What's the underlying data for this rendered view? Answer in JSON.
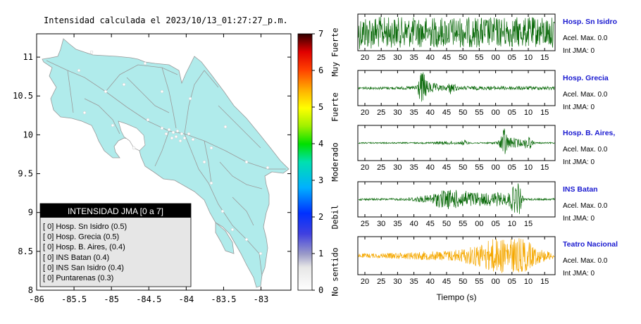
{
  "map": {
    "title": "Intensidad calculada el 2023/10/13_01:27:27_p.m.",
    "x_ticks": [
      "-86",
      "-85.5",
      "-85",
      "-84.5",
      "-84",
      "-83.5",
      "-83"
    ],
    "y_ticks": [
      "8",
      "8.5",
      "9",
      "9.5",
      "10",
      "10.5",
      "11"
    ],
    "xlim": [
      -86,
      -82.6
    ],
    "ylim": [
      8,
      11.3
    ],
    "land_color": "#b0ebeb"
  },
  "legend": {
    "header": "INTENSIDAD JMA [0 a 7]",
    "items": [
      "[ 0]  Hosp. Sn Isidro (0.5)",
      "[ 0]  Hosp. Grecia (0.5)",
      "[ 0]  Hosp. B. Aires, (0.4)",
      "[ 0]  INS Batan (0.4)",
      "[ 0]  INS San Isidro (0.4)",
      "[ 0]  Puntarenas (0.3)"
    ]
  },
  "colorbar": {
    "ticks": [
      "0",
      "1",
      "2",
      "3",
      "4",
      "5",
      "6",
      "7"
    ],
    "range": [
      0,
      7
    ],
    "labels": [
      {
        "text": "No sentido",
        "center": 0.5
      },
      {
        "text": "Debil",
        "center": 2.0
      },
      {
        "text": "Moderado",
        "center": 3.5
      },
      {
        "text": "Fuerte",
        "center": 5.0
      },
      {
        "text": "Muy Fuerte",
        "center": 6.5
      }
    ]
  },
  "chart_data": {
    "type": "line",
    "xlabel": "Tiempo (s)",
    "stations": [
      {
        "name": "Hosp. Sn Isidro",
        "acel": "Acel. Max. 0.0",
        "int": "Int JMA: 0",
        "color": "#0a6a0a",
        "ticks": [
          "20",
          "25",
          "30",
          "35",
          "40",
          "45",
          "50",
          "55",
          "00",
          "05",
          "10",
          "15"
        ],
        "tick_start": 20,
        "noise": 0.9,
        "bursts": [
          [
            17,
            0.4,
            3.5
          ]
        ]
      },
      {
        "name": "Hosp. Grecia",
        "acel": "Acel. Max. 0.0",
        "int": "Int JMA: 0",
        "color": "#0a6a0a",
        "ticks": [
          "20",
          "25",
          "30",
          "35",
          "40",
          "45",
          "50",
          "55",
          "00",
          "05",
          "10",
          "15"
        ],
        "tick_start": 20,
        "noise": 0.06,
        "bursts": [
          [
            37.5,
            0.9,
            0.8
          ],
          [
            39.5,
            0.25,
            2.5
          ],
          [
            46.5,
            0.3,
            0.8
          ],
          [
            60,
            0.06,
            25
          ]
        ]
      },
      {
        "name": "Hosp. B. Aires,",
        "acel": "Acel. Max. 0.0",
        "int": "Int JMA: 0",
        "color": "#0a6a0a",
        "ticks": [
          "20",
          "25",
          "30",
          "35",
          "40",
          "45",
          "50",
          "55",
          "00",
          "05",
          "10",
          "15"
        ],
        "tick_start": 20,
        "noise": 0.04,
        "bursts": [
          [
            62.5,
            1.0,
            0.6
          ],
          [
            65,
            0.3,
            2.5
          ],
          [
            70,
            0.4,
            0.8
          ],
          [
            50.5,
            0.15,
            0.6
          ],
          [
            45,
            0.07,
            3
          ]
        ]
      },
      {
        "name": "INS Batan",
        "acel": "Acel. Max. 0.0",
        "int": "Int JMA: 0",
        "color": "#0a6a0a",
        "ticks": [
          "25",
          "30",
          "35",
          "40",
          "45",
          "50",
          "55",
          "00",
          "05",
          "10",
          "15"
        ],
        "tick_start": 25,
        "noise": 0.06,
        "bursts": [
          [
            49,
            0.35,
            3
          ],
          [
            56,
            0.45,
            5
          ],
          [
            66,
            0.3,
            3
          ],
          [
            70.5,
            0.6,
            1.0
          ],
          [
            72,
            1.0,
            0.6
          ],
          [
            42,
            0.1,
            3
          ]
        ]
      },
      {
        "name": "Teatro Nacional",
        "acel": "Acel. Max. 0.0",
        "int": "Int JMA: 0",
        "color": "#f5a800",
        "ticks": [
          "20",
          "25",
          "30",
          "35",
          "40",
          "45",
          "50",
          "55",
          "00",
          "05",
          "10",
          "15"
        ],
        "tick_start": 20,
        "noise": 0.12,
        "bursts": [
          [
            55,
            0.3,
            6
          ],
          [
            62,
            0.6,
            5
          ],
          [
            65,
            0.9,
            3
          ],
          [
            71,
            0.3,
            4
          ],
          [
            40,
            0.12,
            8
          ]
        ]
      }
    ]
  }
}
